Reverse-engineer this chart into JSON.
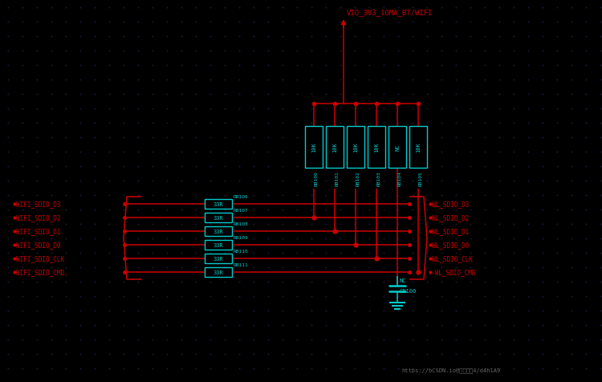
{
  "bg_color": "#000000",
  "cyan": "#00CCCC",
  "red": "#CC0000",
  "bright_red": "#FF2222",
  "dark_red": "#880000",
  "title_text": "VIO_3V3_10MA_BT/WIFI",
  "pullup_labels": [
    "10K",
    "10K",
    "10K",
    "10K",
    "NC",
    "10K"
  ],
  "pullup_rb_labels": [
    "RB100",
    "RB101",
    "RB102",
    "RB103",
    "RB104",
    "RB105"
  ],
  "rb_row_labels": [
    "RB106",
    "RB107",
    "RB108",
    "RB109",
    "RB110",
    "RB111"
  ],
  "res_labels": [
    "33R",
    "33R",
    "33R",
    "33R",
    "33R",
    "33R"
  ],
  "left_net_labels": [
    "WIFI_SDIO_D3",
    "WIFI_SDIO_D2",
    "WIFI_SDIO_D1",
    "WIFI_SDIO_D0",
    "WIFI_SDIO_CLK",
    "WIFI_SDIO_CMD."
  ],
  "right_net_labels": [
    "WL_SDIO_D3",
    "WL_SDIO_D2",
    "WL_SDIO_D1",
    "WL_SDIO_D0",
    "WL_SDIO_CLK",
    "-WL_SDIO_CMD"
  ],
  "cb100_label": "CB100",
  "nc_label": "NC",
  "watermark": "https://bCSDN.io@涯花边心4/d4h1A9",
  "figw": 7.5,
  "figh": 4.77,
  "dpi": 100
}
